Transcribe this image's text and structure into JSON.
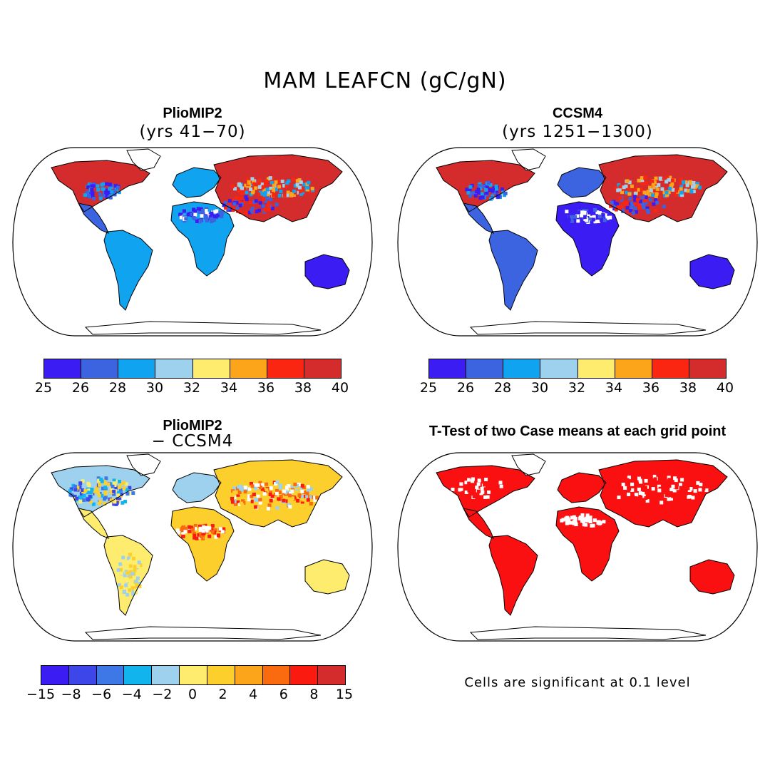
{
  "title": "MAM LEAFCN (gC/gN)",
  "panels": [
    {
      "id": "pliomip2",
      "title": "PlioMIP2",
      "subtitle": "(yrs 41−70)",
      "style": "abs"
    },
    {
      "id": "ccsm4",
      "title": "CCSM4",
      "subtitle": "(yrs 1251−1300)",
      "style": "abs"
    },
    {
      "id": "diff",
      "title": "PlioMIP2",
      "subtitle": "− CCSM4",
      "style": "diff"
    },
    {
      "id": "ttest",
      "title": "T-Test of two Case means at each grid point",
      "subtitle": "",
      "style": "sig"
    }
  ],
  "colorbar_abs": {
    "labels": [
      "25",
      "26",
      "28",
      "30",
      "32",
      "34",
      "36",
      "38",
      "40"
    ],
    "colors": [
      "#3b1cf2",
      "#3d64e0",
      "#10a3ef",
      "#9dd1ee",
      "#fdec6e",
      "#fca41a",
      "#fa2612",
      "#d42c2c"
    ]
  },
  "colorbar_diff": {
    "labels": [
      "−15",
      "−8",
      "−6",
      "−4",
      "−2",
      "0",
      "2",
      "4",
      "6",
      "8",
      "15"
    ],
    "colors": [
      "#3b1cf2",
      "#3d46e8",
      "#3d78e6",
      "#12b4ee",
      "#9dd1ee",
      "#fdec6e",
      "#fccf2c",
      "#fca41a",
      "#fa6a0e",
      "#fa1a10",
      "#d42c2c"
    ]
  },
  "note": "Cells are significant at 0.1 level"
}
